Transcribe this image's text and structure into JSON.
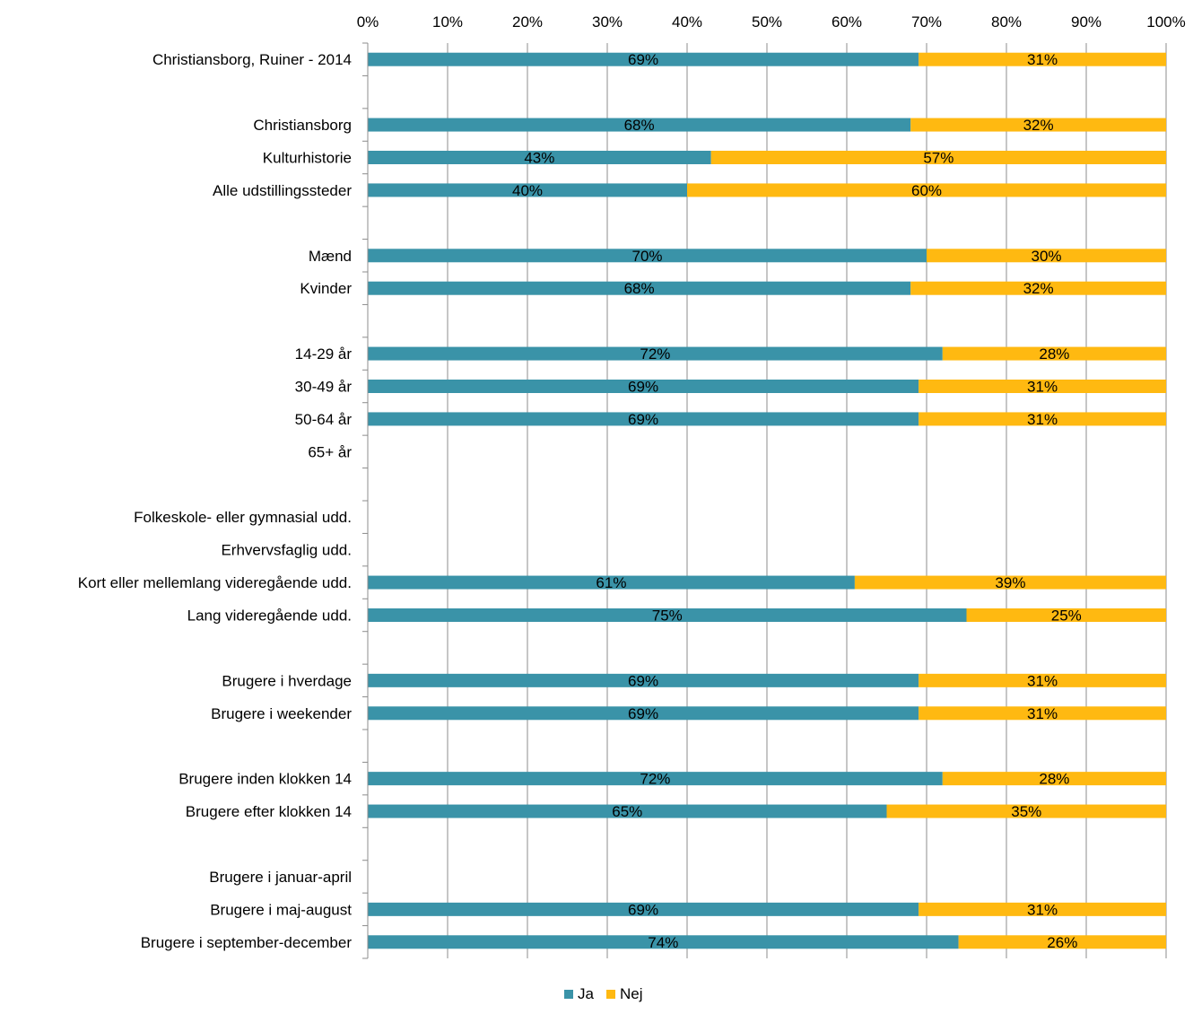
{
  "chart_data": {
    "type": "bar",
    "orientation": "horizontal",
    "stacked": "percent",
    "x_ticks": [
      "0%",
      "10%",
      "20%",
      "30%",
      "40%",
      "50%",
      "60%",
      "70%",
      "80%",
      "90%",
      "100%"
    ],
    "xlim": [
      0,
      100
    ],
    "grid": true,
    "legend_position": "bottom",
    "categories": [
      "Christiansborg, Ruiner - 2014",
      "",
      "Christiansborg",
      "Kulturhistorie",
      "Alle udstillingssteder",
      "",
      "Mænd",
      "Kvinder",
      "",
      "14-29 år",
      "30-49 år",
      "50-64 år",
      "65+ år",
      "",
      "Folkeskole- eller gymnasial udd.",
      "Erhvervsfaglig udd.",
      "Kort eller mellemlang videregående udd.",
      "Lang videregående udd.",
      "",
      "Brugere i hverdage",
      "Brugere i weekender",
      "",
      "Brugere inden klokken 14",
      "Brugere efter klokken 14",
      "",
      "Brugere i januar-april",
      "Brugere i maj-august",
      "Brugere i september-december"
    ],
    "series": [
      {
        "name": "Ja",
        "color": "#3A93A8",
        "values": [
          69,
          null,
          68,
          43,
          40,
          null,
          70,
          68,
          null,
          72,
          69,
          69,
          null,
          null,
          null,
          null,
          61,
          75,
          null,
          69,
          69,
          null,
          72,
          65,
          null,
          null,
          69,
          74
        ]
      },
      {
        "name": "Nej",
        "color": "#FFB911",
        "values": [
          31,
          null,
          32,
          57,
          60,
          null,
          30,
          32,
          null,
          28,
          31,
          31,
          null,
          null,
          null,
          null,
          39,
          25,
          null,
          31,
          31,
          null,
          28,
          35,
          null,
          null,
          31,
          26
        ]
      }
    ]
  }
}
